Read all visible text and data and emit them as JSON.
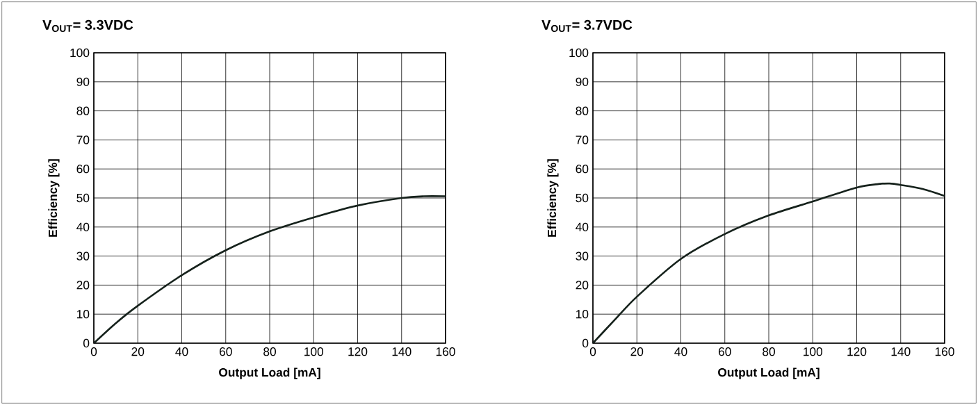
{
  "chart_data": [
    {
      "type": "line",
      "title": "V$_{OUT}$= 3.3VDC",
      "xlabel": "Output Load [mA]",
      "ylabel": "Efficiency [%]",
      "x": [
        0,
        10,
        20,
        40,
        60,
        80,
        100,
        120,
        140,
        150,
        160
      ],
      "series": [
        {
          "color": "#16221c",
          "values": [
            0,
            6.9,
            12.9,
            23.4,
            32,
            38.5,
            43.3,
            47.4,
            50,
            50.6,
            50.6
          ]
        }
      ],
      "xlim": [
        0,
        160
      ],
      "ylim": [
        0,
        100
      ],
      "xticks": [
        0,
        20,
        40,
        60,
        80,
        100,
        120,
        140,
        160
      ],
      "yticks": [
        0,
        10,
        20,
        30,
        40,
        50,
        60,
        70,
        80,
        90,
        100
      ],
      "grid": true,
      "marker": "none",
      "line_style": "solid"
    },
    {
      "type": "line",
      "title": "V$_{OUT}$= 3.7VDC",
      "xlabel": "Output Load [mA]",
      "ylabel": "Efficiency [%]",
      "x": [
        0,
        10,
        20,
        40,
        60,
        80,
        100,
        120,
        130,
        135,
        140,
        150,
        160
      ],
      "series": [
        {
          "color": "#16221c",
          "values": [
            0,
            8.1,
            16,
            29,
            37.6,
            44,
            48.8,
            53.6,
            54.8,
            55,
            54.5,
            53.1,
            50.7
          ]
        }
      ],
      "xlim": [
        0,
        160
      ],
      "ylim": [
        0,
        100
      ],
      "xticks": [
        0,
        20,
        40,
        60,
        80,
        100,
        120,
        140,
        160
      ],
      "yticks": [
        0,
        10,
        20,
        30,
        40,
        50,
        60,
        70,
        80,
        90,
        100
      ],
      "grid": true,
      "marker": "none",
      "line_style": "solid"
    }
  ]
}
